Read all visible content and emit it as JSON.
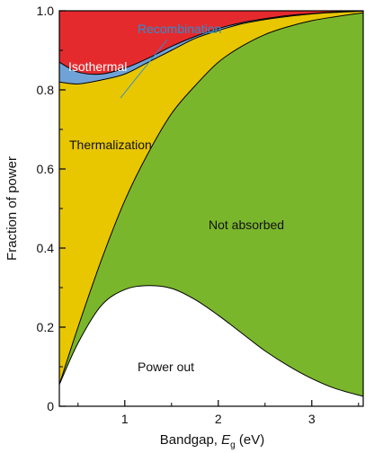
{
  "chart_data": {
    "type": "area",
    "stacked": true,
    "xlabel_prefix": "Bandgap, ",
    "xlabel_var": "E",
    "xlabel_sub": "g",
    "xlabel_unit": " (eV)",
    "ylabel": "Fraction of power",
    "xlim": [
      0.3,
      3.55
    ],
    "ylim": [
      0,
      1.0
    ],
    "x_ticks": [
      1,
      2,
      3
    ],
    "y_ticks": [
      0,
      0.2,
      0.4,
      0.6,
      0.8,
      1.0
    ],
    "y_tick_labels": [
      "0",
      "0.2",
      "0.4",
      "0.6",
      "0.8",
      "1.0"
    ],
    "grid": false,
    "x": [
      0.3,
      0.5,
      0.75,
      1.0,
      1.25,
      1.5,
      1.75,
      2.0,
      2.25,
      2.5,
      2.75,
      3.0,
      3.25,
      3.55
    ],
    "boundaries": {
      "power_out": [
        0.055,
        0.16,
        0.255,
        0.295,
        0.305,
        0.298,
        0.27,
        0.23,
        0.185,
        0.14,
        0.102,
        0.07,
        0.045,
        0.025
      ],
      "not_absorbed": [
        0.055,
        0.2,
        0.37,
        0.52,
        0.64,
        0.74,
        0.81,
        0.87,
        0.91,
        0.94,
        0.96,
        0.975,
        0.985,
        0.995
      ],
      "thermalization": [
        0.82,
        0.815,
        0.825,
        0.84,
        0.87,
        0.9,
        0.93,
        0.95,
        0.967,
        0.978,
        0.986,
        0.992,
        0.996,
        0.999
      ],
      "recombination": [
        0.87,
        0.845,
        0.84,
        0.855,
        0.88,
        0.91,
        0.935,
        0.955,
        0.97,
        0.98,
        0.988,
        0.993,
        0.997,
        0.9995
      ],
      "isothermal": [
        1.0,
        1.0,
        1.0,
        1.0,
        1.0,
        1.0,
        1.0,
        1.0,
        1.0,
        1.0,
        1.0,
        1.0,
        1.0,
        1.0
      ]
    },
    "series": [
      {
        "name": "Power out",
        "color": "#ffffff"
      },
      {
        "name": "Not absorbed",
        "color": "#7ab62c"
      },
      {
        "name": "Thermalization",
        "color": "#e8c600"
      },
      {
        "name": "Recombination",
        "color": "#6fa3d8"
      },
      {
        "name": "Isothermal",
        "color": "#e52a2e"
      }
    ],
    "annotations": {
      "isothermal": "Isothermal",
      "recombination": "Recombination",
      "thermalization": "Thermalization",
      "not_absorbed": "Not absorbed",
      "power_out": "Power out"
    },
    "annotation_colors": {
      "isothermal": "#ffffff",
      "recombination": "#2a8fd0",
      "thermalization": "#111111",
      "not_absorbed": "#111111",
      "power_out": "#111111"
    }
  }
}
